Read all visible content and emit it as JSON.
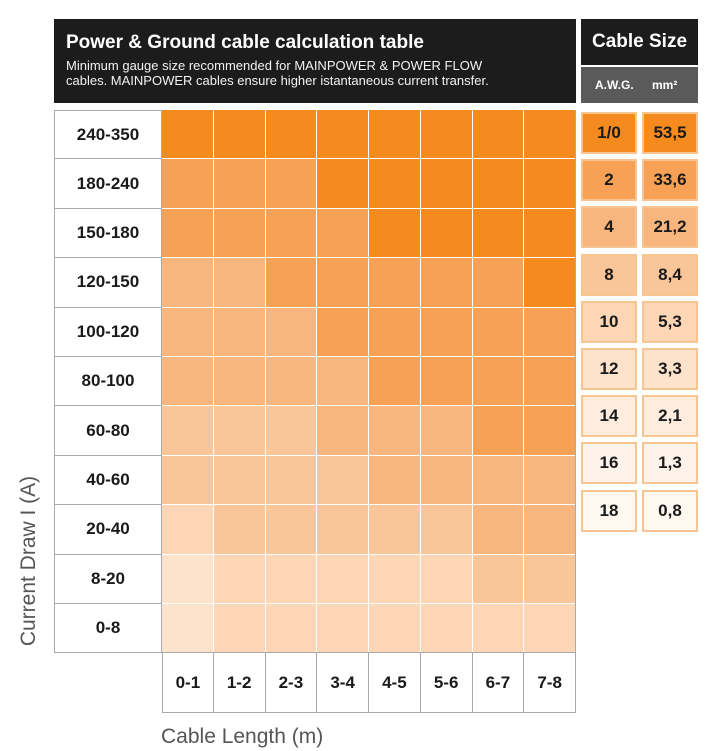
{
  "chart_data": {
    "type": "heatmap",
    "title": "Power & Ground cable calculation table",
    "subtitle_lines": [
      "Minimum gauge size recommended for MAINPOWER & POWER FLOW",
      "cables. MAINPOWER cables ensure higher istantaneous current transfer."
    ],
    "xlabel": "Cable Length (m)",
    "ylabel": "Current Draw I (A)",
    "x_categories": [
      "0-1",
      "1-2",
      "2-3",
      "3-4",
      "4-5",
      "5-6",
      "6-7",
      "7-8"
    ],
    "y_categories": [
      "240-350",
      "180-240",
      "150-180",
      "120-150",
      "100-120",
      "80-100",
      "60-80",
      "40-60",
      "20-40",
      "8-20",
      "0-8"
    ],
    "legend_title": "Cable Size",
    "legend_columns": [
      "A.W.G.",
      "mm²"
    ],
    "legend": [
      {
        "awg": "1/0",
        "mm2": "53,5",
        "color": "#f58a1f"
      },
      {
        "awg": "2",
        "mm2": "33,6",
        "color": "#f7a156"
      },
      {
        "awg": "4",
        "mm2": "21,2",
        "color": "#f8b57d"
      },
      {
        "awg": "8",
        "mm2": "8,4",
        "color": "#fac699"
      },
      {
        "awg": "10",
        "mm2": "5,3",
        "color": "#fcd6b5"
      },
      {
        "awg": "12",
        "mm2": "3,3",
        "color": "#fde3cc"
      },
      {
        "awg": "14",
        "mm2": "2,1",
        "color": "#feeddf"
      },
      {
        "awg": "16",
        "mm2": "1,3",
        "color": "#fef3ea"
      },
      {
        "awg": "18",
        "mm2": "0,8",
        "color": "#fff8f1"
      }
    ],
    "values": [
      [
        "1/0",
        "1/0",
        "1/0",
        "1/0",
        "1/0",
        "1/0",
        "1/0",
        "1/0"
      ],
      [
        "2",
        "2",
        "2",
        "1/0",
        "1/0",
        "1/0",
        "1/0",
        "1/0"
      ],
      [
        "2",
        "2",
        "2",
        "2",
        "1/0",
        "1/0",
        "1/0",
        "1/0"
      ],
      [
        "4",
        "4",
        "2",
        "2",
        "2",
        "2",
        "2",
        "1/0"
      ],
      [
        "4",
        "4",
        "4",
        "2",
        "2",
        "2",
        "2",
        "2"
      ],
      [
        "4",
        "4",
        "4",
        "4",
        "2",
        "2",
        "2",
        "2"
      ],
      [
        "8",
        "8",
        "8",
        "4",
        "4",
        "4",
        "2",
        "2"
      ],
      [
        "8",
        "8",
        "8",
        "8",
        "4",
        "4",
        "4",
        "4"
      ],
      [
        "10",
        "8",
        "8",
        "8",
        "8",
        "8",
        "4",
        "4"
      ],
      [
        "12",
        "10",
        "10",
        "10",
        "10",
        "10",
        "8",
        "8"
      ],
      [
        "12",
        "10",
        "10",
        "10",
        "10",
        "10",
        "10",
        "10"
      ]
    ]
  }
}
